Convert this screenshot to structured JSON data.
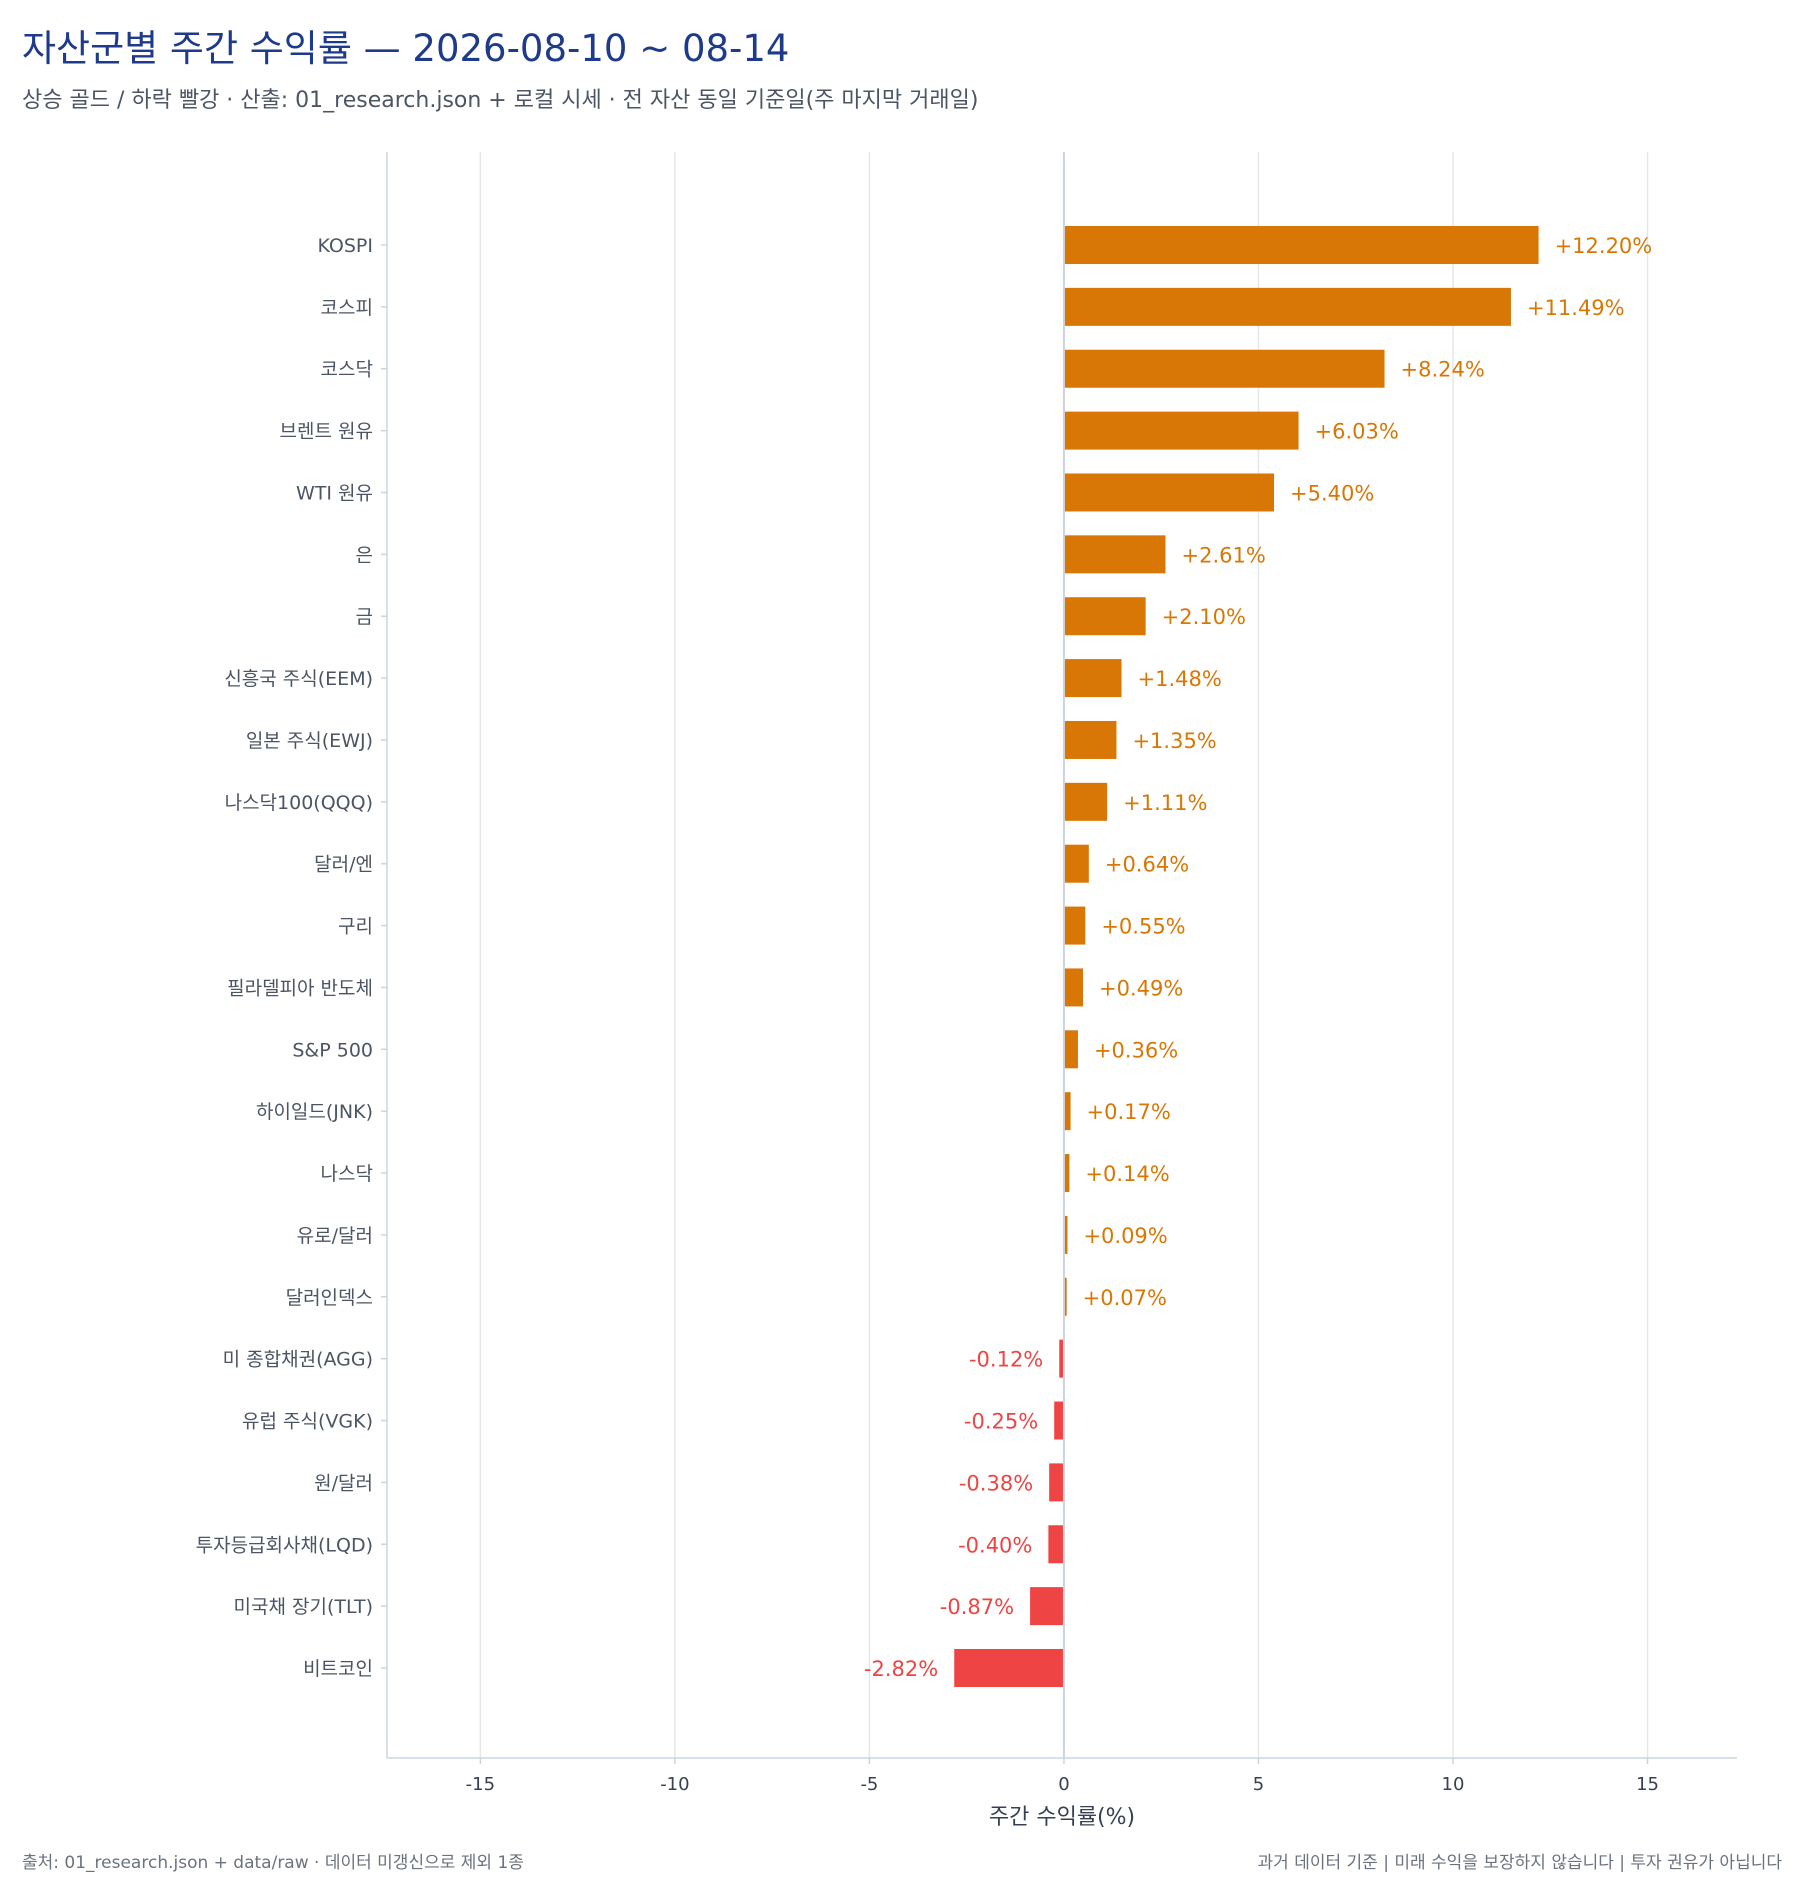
{
  "header": {
    "title": "자산군별 주간 수익률 — 2026-08-10 ~ 08-14",
    "subtitle": "상승 골드 / 하락 빨강 · 산출: 01_research.json + 로컬 시세 · 전 자산 동일 기준일(주 마지막 거래일)"
  },
  "footer": {
    "source": "출처: 01_research.json + data/raw · 데이터 미갱신으로 제외 1종",
    "disclaimer": "과거 데이터 기준 | 미래 수익을 보장하지 않습니다 | 투자 권유가 아닙니다"
  },
  "colors": {
    "positive": "#d97706",
    "negative": "#ef4444",
    "grid": "#e5e7eb",
    "axis": "#cbd5e1"
  },
  "chart_data": {
    "type": "bar",
    "orientation": "horizontal",
    "categories": [
      "KOSPI",
      "코스피",
      "코스닥",
      "브렌트 원유",
      "WTI 원유",
      "은",
      "금",
      "신흥국 주식(EEM)",
      "일본 주식(EWJ)",
      "나스닥100(QQQ)",
      "달러/엔",
      "구리",
      "필라델피아 반도체",
      "S&P 500",
      "하이일드(JNK)",
      "나스닥",
      "유로/달러",
      "달러인덱스",
      "미 종합채권(AGG)",
      "유럽 주식(VGK)",
      "원/달러",
      "투자등급회사채(LQD)",
      "미국채 장기(TLT)",
      "비트코인"
    ],
    "values": [
      12.2,
      11.49,
      8.24,
      6.03,
      5.4,
      2.61,
      2.1,
      1.48,
      1.35,
      1.11,
      0.64,
      0.55,
      0.49,
      0.36,
      0.17,
      0.14,
      0.09,
      0.07,
      -0.12,
      -0.25,
      -0.38,
      -0.4,
      -0.87,
      -2.82
    ],
    "value_labels": [
      "+12.20%",
      "+11.49%",
      "+8.24%",
      "+6.03%",
      "+5.40%",
      "+2.61%",
      "+2.10%",
      "+1.48%",
      "+1.35%",
      "+1.11%",
      "+0.64%",
      "+0.55%",
      "+0.49%",
      "+0.36%",
      "+0.17%",
      "+0.14%",
      "+0.09%",
      "+0.07%",
      "-0.12%",
      "-0.25%",
      "-0.38%",
      "-0.40%",
      "-0.87%",
      "-2.82%"
    ],
    "xlabel": "주간 수익률(%)",
    "ylabel": "",
    "xlim": [
      -17.4,
      17.3
    ],
    "xticks": [
      -15,
      -10,
      -5,
      0,
      5,
      10,
      15
    ],
    "xtick_labels": [
      "-15",
      "-10",
      "-5",
      "0",
      "5",
      "10",
      "15"
    ],
    "grid": "vertical"
  }
}
